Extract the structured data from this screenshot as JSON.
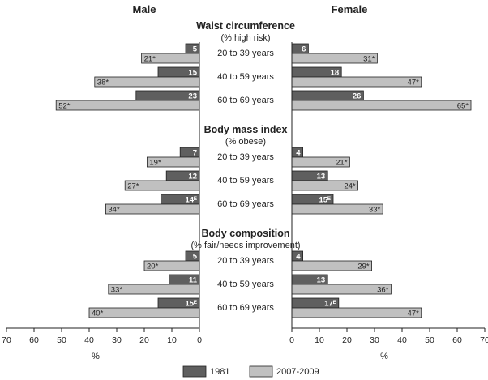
{
  "chart_data": {
    "type": "bar",
    "orientation": "horizontal-butterfly",
    "headers": {
      "male": "Male",
      "female": "Female"
    },
    "unit_label": "%",
    "xlim": [
      0,
      70
    ],
    "ticks": [
      "70",
      "60",
      "50",
      "40",
      "30",
      "20",
      "10",
      "0"
    ],
    "ticks_right": [
      "0",
      "10",
      "20",
      "30",
      "40",
      "50",
      "60",
      "70"
    ],
    "categories": [
      "20 to 39 years",
      "40 to 59 years",
      "60 to 69 years"
    ],
    "series_names": [
      "1981",
      "2007-2009"
    ],
    "colors": {
      "1981": "#5f5f5f",
      "2007-2009": "#c0c0c0"
    },
    "sections": [
      {
        "title": "Waist circumference",
        "subtitle": "(% high risk)",
        "male": {
          "1981": [
            5,
            15,
            23
          ],
          "2007-2009": [
            21,
            38,
            52
          ]
        },
        "female": {
          "1981": [
            6,
            18,
            26
          ],
          "2007-2009": [
            31,
            47,
            65
          ]
        },
        "male_labels": {
          "1981": [
            "5",
            "15",
            "23"
          ],
          "2007-2009": [
            "21*",
            "38*",
            "52*"
          ]
        },
        "female_labels": {
          "1981": [
            "6",
            "18",
            "26"
          ],
          "2007-2009": [
            "31*",
            "47*",
            "65*"
          ]
        }
      },
      {
        "title": "Body mass index",
        "subtitle": "(% obese)",
        "male": {
          "1981": [
            7,
            12,
            14
          ],
          "2007-2009": [
            19,
            27,
            34
          ]
        },
        "female": {
          "1981": [
            4,
            13,
            15
          ],
          "2007-2009": [
            21,
            24,
            33
          ]
        },
        "male_labels": {
          "1981": [
            "7",
            "12",
            "14ᴱ"
          ],
          "2007-2009": [
            "19*",
            "27*",
            "34*"
          ]
        },
        "female_labels": {
          "1981": [
            "4",
            "13",
            "15ᴱ"
          ],
          "2007-2009": [
            "21*",
            "24*",
            "33*"
          ]
        }
      },
      {
        "title": "Body composition",
        "subtitle": "(% fair/needs improvement)",
        "male": {
          "1981": [
            5,
            11,
            15
          ],
          "2007-2009": [
            20,
            33,
            40
          ]
        },
        "female": {
          "1981": [
            4,
            13,
            17
          ],
          "2007-2009": [
            29,
            36,
            47
          ]
        },
        "male_labels": {
          "1981": [
            "5",
            "11",
            "15ᴱ"
          ],
          "2007-2009": [
            "20*",
            "33*",
            "40*"
          ]
        },
        "female_labels": {
          "1981": [
            "4",
            "13",
            "17ᴱ"
          ],
          "2007-2009": [
            "29*",
            "36*",
            "47*"
          ]
        }
      }
    ]
  }
}
